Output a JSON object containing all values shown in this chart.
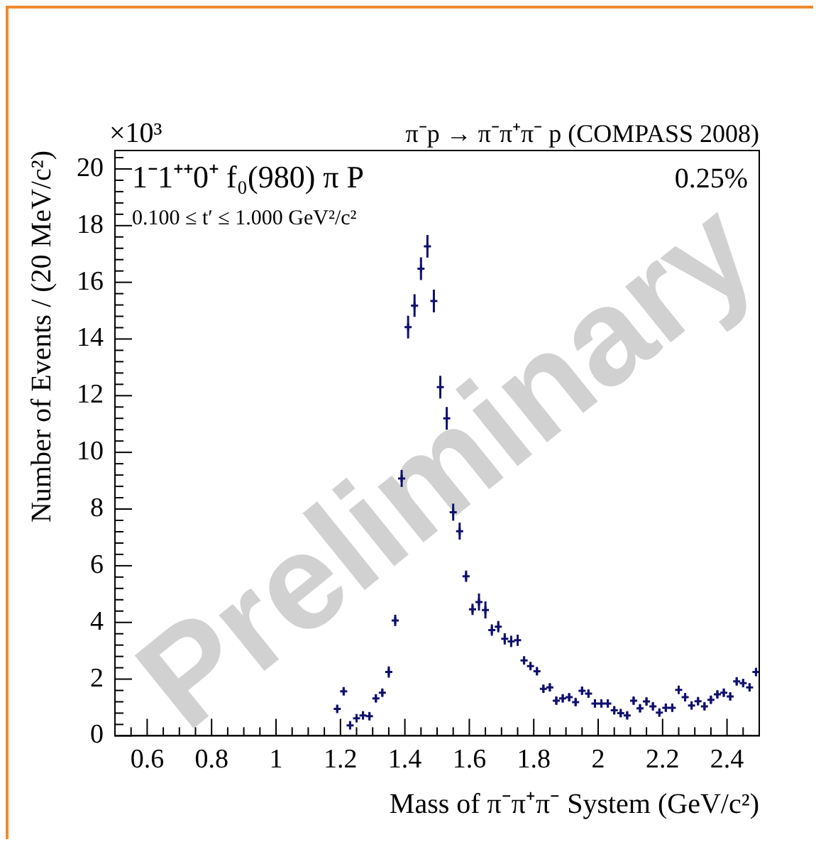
{
  "chart_data": {
    "type": "scatter",
    "title": "π⁻p → π⁻π⁺π⁻ p (COMPASS 2008)",
    "xlabel": "Mass of π⁻π⁺π⁻ System (GeV/c²)",
    "ylabel": "Number of Events / (20 MeV/c²)",
    "annotations": [
      "×10³",
      "1⁻1⁺⁺0⁺ f₀(980) π P",
      "0.100 ≤ t′ ≤ 1.000 GeV²/c²",
      "0.25%",
      "Preliminary"
    ],
    "series": [
      {
        "color": "#10106e",
        "x": [
          1.19,
          1.21,
          1.23,
          1.25,
          1.27,
          1.29,
          1.31,
          1.33,
          1.35,
          1.37,
          1.39,
          1.41,
          1.43,
          1.45,
          1.47,
          1.49,
          1.51,
          1.53,
          1.55,
          1.57,
          1.59,
          1.61,
          1.63,
          1.65,
          1.67,
          1.69,
          1.71,
          1.73,
          1.75,
          1.77,
          1.79,
          1.81,
          1.83,
          1.85,
          1.87,
          1.89,
          1.91,
          1.93,
          1.95,
          1.97,
          1.99,
          2.01,
          2.03,
          2.05,
          2.07,
          2.09,
          2.11,
          2.13,
          2.15,
          2.17,
          2.19,
          2.21,
          2.23,
          2.25,
          2.27,
          2.29,
          2.31,
          2.33,
          2.35,
          2.37,
          2.39,
          2.41,
          2.43,
          2.45,
          2.47,
          2.49
        ],
        "values": [
          0.95,
          1.57,
          0.37,
          0.62,
          0.72,
          0.69,
          1.32,
          1.52,
          2.25,
          4.07,
          9.08,
          14.42,
          15.18,
          16.48,
          17.27,
          15.34,
          12.3,
          11.2,
          7.89,
          7.22,
          5.63,
          4.46,
          4.72,
          4.44,
          3.73,
          3.85,
          3.42,
          3.33,
          3.37,
          2.66,
          2.46,
          2.28,
          1.66,
          1.71,
          1.24,
          1.32,
          1.36,
          1.19,
          1.59,
          1.49,
          1.14,
          1.14,
          1.14,
          0.9,
          0.8,
          0.72,
          1.24,
          0.97,
          1.21,
          1.04,
          0.82,
          0.99,
          0.99,
          1.62,
          1.36,
          1.07,
          1.22,
          1.04,
          1.27,
          1.46,
          1.52,
          1.39,
          1.92,
          1.86,
          1.71,
          2.25
        ],
        "errors": [
          0.15,
          0.15,
          0.15,
          0.15,
          0.15,
          0.15,
          0.15,
          0.15,
          0.2,
          0.2,
          0.3,
          0.4,
          0.4,
          0.4,
          0.4,
          0.4,
          0.4,
          0.4,
          0.3,
          0.3,
          0.2,
          0.2,
          0.3,
          0.3,
          0.2,
          0.2,
          0.2,
          0.2,
          0.2,
          0.15,
          0.15,
          0.15,
          0.15,
          0.15,
          0.15,
          0.15,
          0.15,
          0.15,
          0.15,
          0.15,
          0.15,
          0.15,
          0.15,
          0.15,
          0.15,
          0.15,
          0.15,
          0.15,
          0.15,
          0.15,
          0.15,
          0.15,
          0.15,
          0.15,
          0.15,
          0.15,
          0.15,
          0.15,
          0.15,
          0.15,
          0.15,
          0.15,
          0.15,
          0.15,
          0.15,
          0.15
        ]
      }
    ],
    "marker": "cross",
    "xlim": [
      0.5,
      2.5
    ],
    "xticks": [
      {
        "value": 0.5,
        "label": null
      },
      {
        "value": 0.55,
        "label": null
      },
      0.6,
      {
        "value": 0.65,
        "label": null
      },
      {
        "value": 0.7,
        "label": null
      },
      {
        "value": 0.75,
        "label": null
      },
      0.8,
      {
        "value": 0.85,
        "label": null
      },
      {
        "value": 0.9,
        "label": null
      },
      {
        "value": 0.95,
        "label": null
      },
      1,
      {
        "value": 1.05,
        "label": null
      },
      {
        "value": 1.1,
        "label": null
      },
      {
        "value": 1.15,
        "label": null
      },
      1.2,
      {
        "value": 1.25,
        "label": null
      },
      {
        "value": 1.3,
        "label": null
      },
      {
        "value": 1.35,
        "label": null
      },
      1.4,
      {
        "value": 1.45,
        "label": null
      },
      {
        "value": 1.5,
        "label": null
      },
      {
        "value": 1.55,
        "label": null
      },
      1.6,
      {
        "value": 1.65,
        "label": null
      },
      {
        "value": 1.7,
        "label": null
      },
      {
        "value": 1.75,
        "label": null
      },
      1.8,
      {
        "value": 1.85,
        "label": null
      },
      {
        "value": 1.9,
        "label": null
      },
      {
        "value": 1.95,
        "label": null
      },
      2,
      {
        "value": 2.05,
        "label": null
      },
      {
        "value": 2.1,
        "label": null
      },
      {
        "value": 2.15,
        "label": null
      },
      2.2,
      {
        "value": 2.25,
        "label": null
      },
      {
        "value": 2.3,
        "label": null
      },
      {
        "value": 2.35,
        "label": null
      },
      2.4,
      {
        "value": 2.45,
        "label": null
      },
      {
        "value": 2.5,
        "label": null
      }
    ],
    "ylim": [
      0,
      20.65
    ],
    "yticks": [
      0,
      {
        "value": 0.4,
        "label": null
      },
      {
        "value": 0.8,
        "label": null
      },
      {
        "value": 1.2,
        "label": null
      },
      {
        "value": 1.6,
        "label": null
      },
      2,
      {
        "value": 2.4,
        "label": null
      },
      {
        "value": 2.8,
        "label": null
      },
      {
        "value": 3.2,
        "label": null
      },
      {
        "value": 3.6,
        "label": null
      },
      4,
      {
        "value": 4.4,
        "label": null
      },
      {
        "value": 4.8,
        "label": null
      },
      {
        "value": 5.2,
        "label": null
      },
      {
        "value": 5.6,
        "label": null
      },
      6,
      {
        "value": 6.4,
        "label": null
      },
      {
        "value": 6.8,
        "label": null
      },
      {
        "value": 7.2,
        "label": null
      },
      {
        "value": 7.6,
        "label": null
      },
      8,
      {
        "value": 8.4,
        "label": null
      },
      {
        "value": 8.8,
        "label": null
      },
      {
        "value": 9.2,
        "label": null
      },
      {
        "value": 9.6,
        "label": null
      },
      10,
      {
        "value": 10.4,
        "label": null
      },
      {
        "value": 10.8,
        "label": null
      },
      {
        "value": 11.2,
        "label": null
      },
      {
        "value": 11.6,
        "label": null
      },
      12,
      {
        "value": 12.4,
        "label": null
      },
      {
        "value": 12.8,
        "label": null
      },
      {
        "value": 13.2,
        "label": null
      },
      {
        "value": 13.6,
        "label": null
      },
      14,
      {
        "value": 14.4,
        "label": null
      },
      {
        "value": 14.8,
        "label": null
      },
      {
        "value": 15.2,
        "label": null
      },
      {
        "value": 15.6,
        "label": null
      },
      16,
      {
        "value": 16.4,
        "label": null
      },
      {
        "value": 16.8,
        "label": null
      },
      {
        "value": 17.2,
        "label": null
      },
      {
        "value": 17.6,
        "label": null
      },
      18,
      {
        "value": 18.4,
        "label": null
      },
      {
        "value": 18.8,
        "label": null
      },
      {
        "value": 19.2,
        "label": null
      },
      {
        "value": 19.6,
        "label": null
      },
      20,
      {
        "value": 20.4,
        "label": null
      }
    ],
    "grid": false,
    "legend": false
  }
}
